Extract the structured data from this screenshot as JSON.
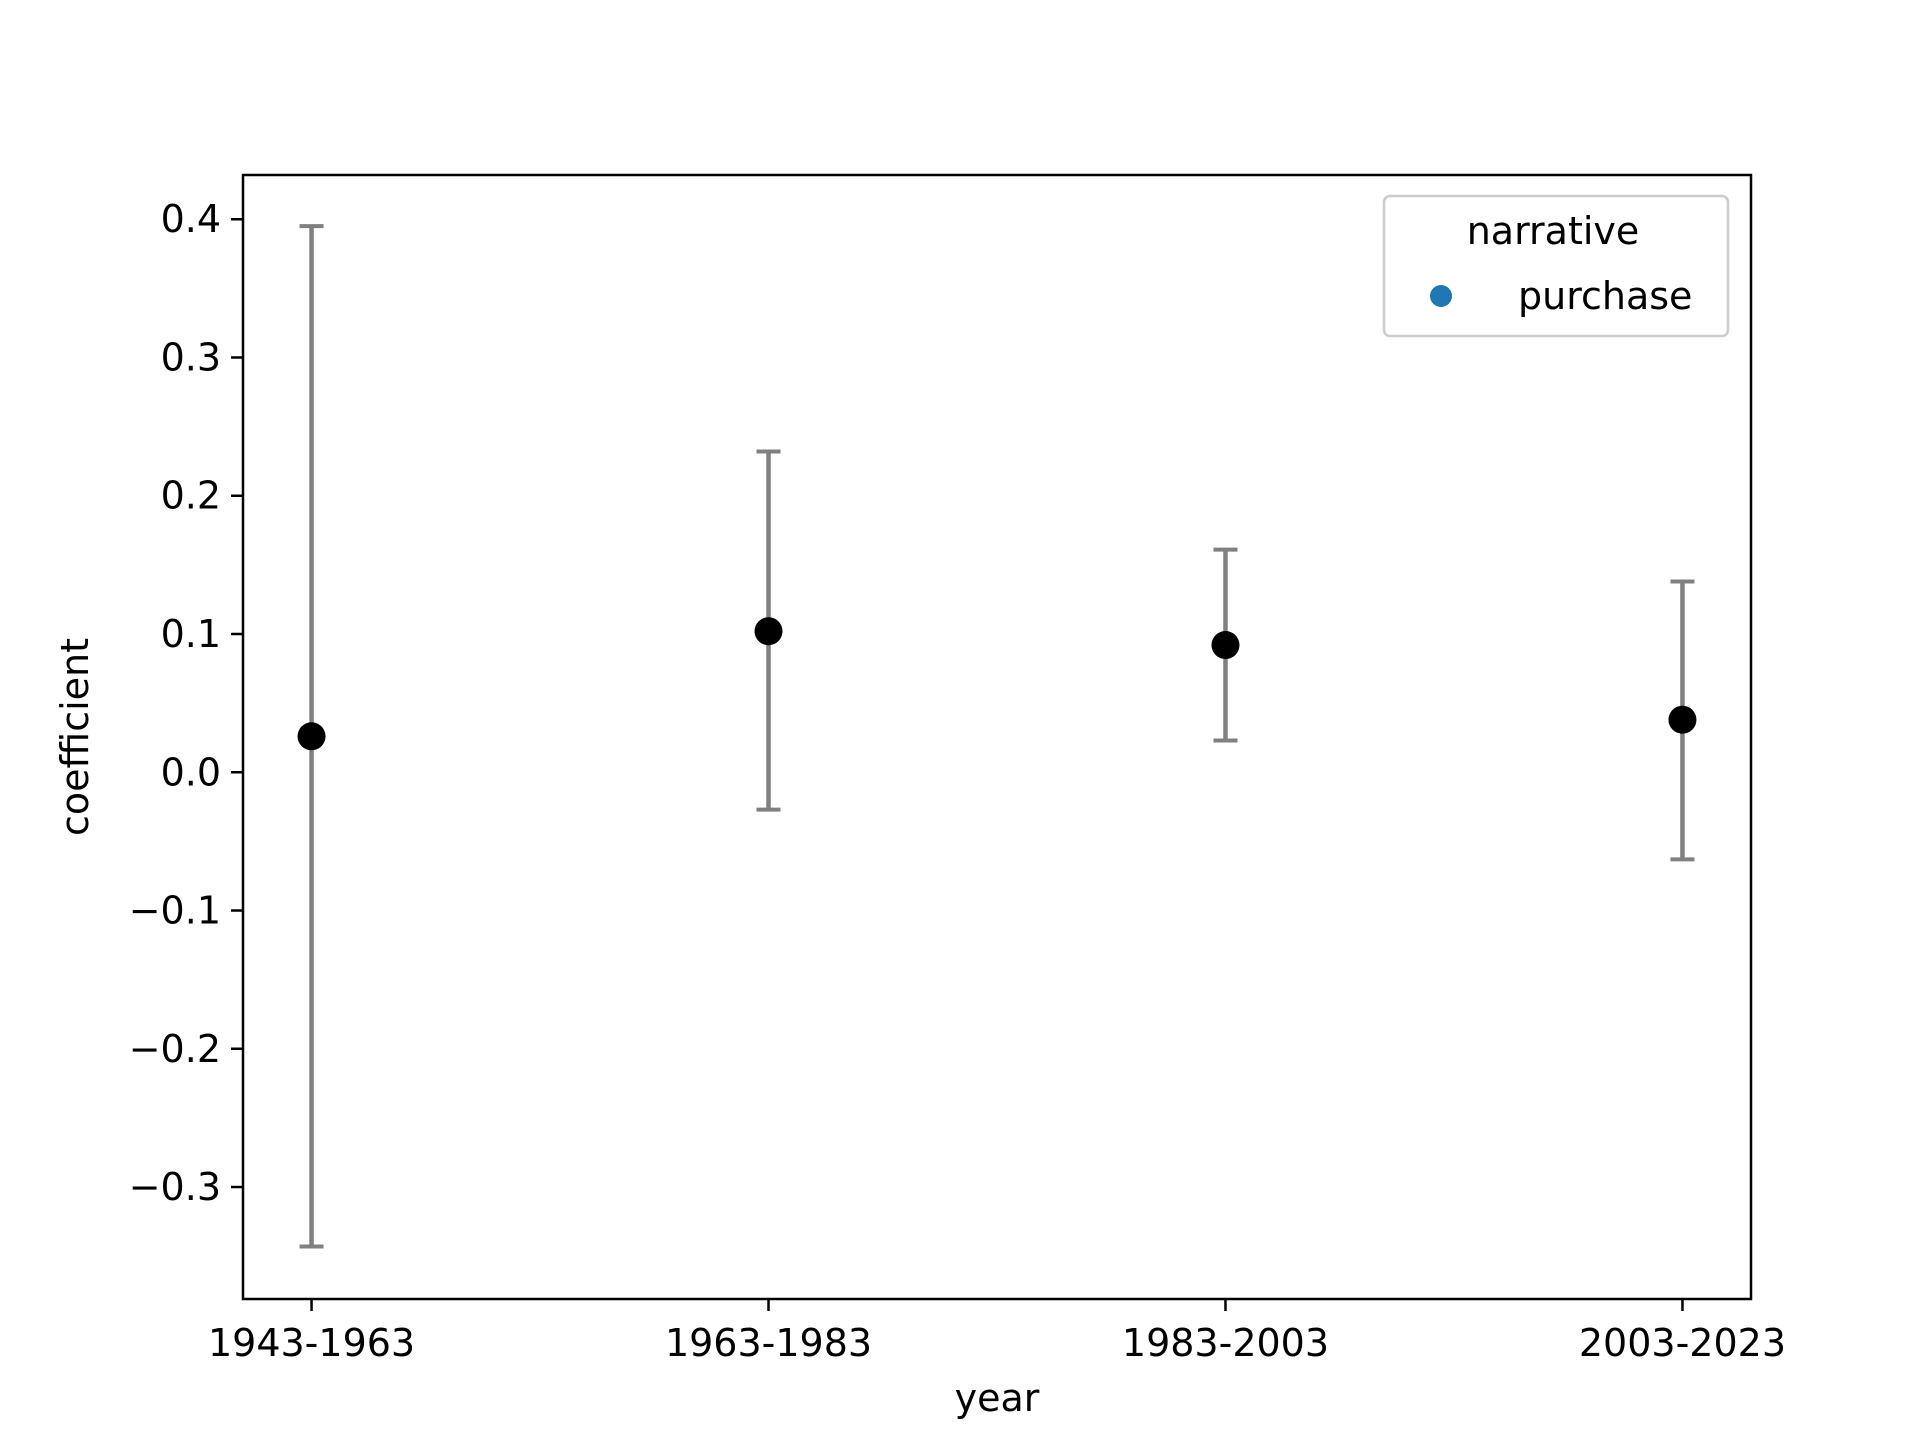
{
  "chart_data": {
    "type": "scatter",
    "title": "",
    "xlabel": "year",
    "ylabel": "coefficient",
    "categories": [
      "1943-1963",
      "1963-1983",
      "1983-2003",
      "2003-2023"
    ],
    "series": [
      {
        "name": "purchase",
        "values": [
          0.026,
          0.102,
          0.092,
          0.038
        ],
        "err_low": [
          -0.343,
          -0.027,
          0.023,
          -0.063
        ],
        "err_high": [
          0.395,
          0.232,
          0.161,
          0.138
        ]
      }
    ],
    "yticks": [
      -0.3,
      -0.2,
      -0.1,
      0.0,
      0.1,
      0.2,
      0.3,
      0.4
    ],
    "ytick_labels": [
      "−0.3",
      "−0.2",
      "−0.1",
      "0.0",
      "0.1",
      "0.2",
      "0.3",
      "0.4"
    ],
    "ylim": [
      -0.381,
      0.432
    ],
    "grid": false,
    "legend": {
      "title": "narrative",
      "placement": "top-right",
      "entries": [
        "purchase"
      ]
    },
    "colors": {
      "marker": "#000000",
      "errorbar": "#808080",
      "legend_marker": "#1f77b4",
      "axes": "#000000"
    }
  }
}
